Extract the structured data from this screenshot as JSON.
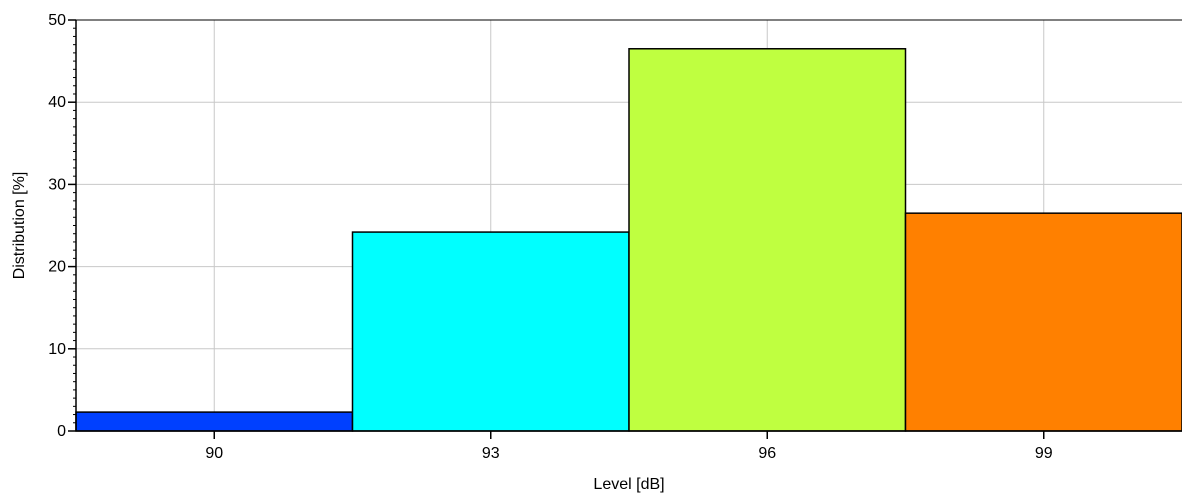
{
  "chart_data": {
    "type": "bar",
    "title": "",
    "xlabel": "Level [dB]",
    "ylabel": "Distribution [%]",
    "categories": [
      "90",
      "93",
      "96",
      "99"
    ],
    "x": [
      90,
      93,
      96,
      99
    ],
    "bin_width": 3,
    "values": [
      2.3,
      24.2,
      46.5,
      26.5
    ],
    "colors": [
      "#0040FF",
      "#00FFFF",
      "#BFFF40",
      "#FF8000"
    ],
    "xlim": [
      88.5,
      100.5
    ],
    "ylim": [
      0,
      50
    ],
    "yticks": [
      0,
      10,
      20,
      30,
      40,
      50
    ],
    "xticks": [
      90,
      93,
      96,
      99
    ],
    "grid": true,
    "legend": "none"
  }
}
